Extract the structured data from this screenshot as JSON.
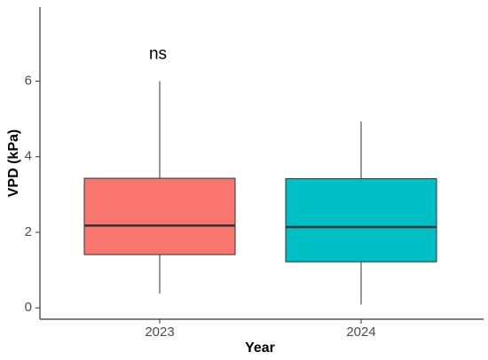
{
  "chart_data": {
    "type": "box",
    "xlabel": "Year",
    "ylabel": "VPD (kPa)",
    "categories": [
      "2023",
      "2024"
    ],
    "boxes": [
      {
        "min": 0.38,
        "q1": 1.41,
        "median": 2.18,
        "q3": 3.43,
        "max": 6.0,
        "color": "#F8766D"
      },
      {
        "min": 0.09,
        "q1": 1.22,
        "median": 2.14,
        "q3": 3.42,
        "max": 4.93,
        "color": "#00BFC4"
      }
    ],
    "annotations": [
      {
        "text": "ns",
        "y": 6.7
      }
    ],
    "ylim": [
      -0.3,
      7.96
    ],
    "yticks": [
      0,
      2,
      4,
      6
    ],
    "grid": false
  }
}
